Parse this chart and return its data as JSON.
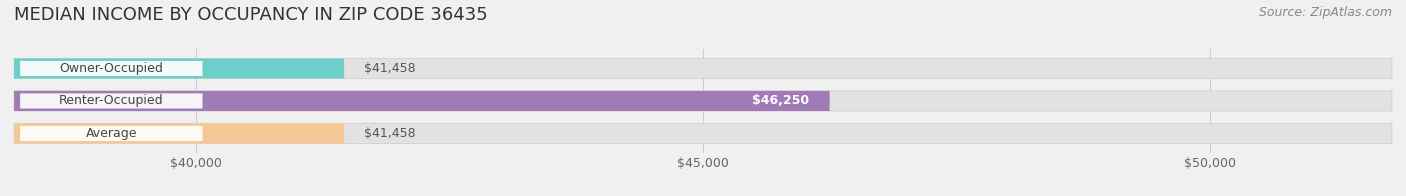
{
  "title": "MEDIAN INCOME BY OCCUPANCY IN ZIP CODE 36435",
  "source": "Source: ZipAtlas.com",
  "categories": [
    "Owner-Occupied",
    "Renter-Occupied",
    "Average"
  ],
  "values": [
    41458,
    46250,
    41458
  ],
  "bar_colors": [
    "#6dceca",
    "#a07bb5",
    "#f5c896"
  ],
  "bar_labels": [
    "$41,458",
    "$46,250",
    "$41,458"
  ],
  "label_inside": [
    false,
    true,
    false
  ],
  "xlim_min": 38200,
  "xlim_max": 51800,
  "xticks": [
    40000,
    45000,
    50000
  ],
  "xtick_labels": [
    "$40,000",
    "$45,000",
    "$50,000"
  ],
  "background_color": "#f0f0f0",
  "bar_bg_color": "#e2e2e2",
  "title_fontsize": 13,
  "source_fontsize": 9,
  "label_fontsize": 9,
  "tick_fontsize": 9,
  "cat_fontsize": 9
}
